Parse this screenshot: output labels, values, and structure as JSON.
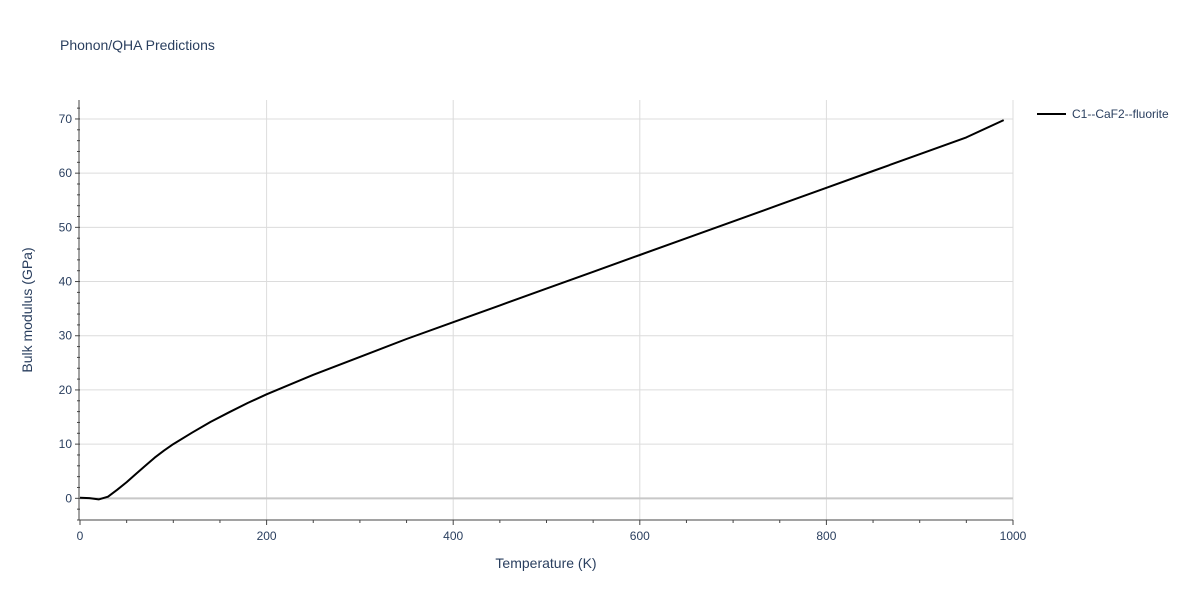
{
  "chart_data": {
    "type": "line",
    "title": "Phonon/QHA Predictions",
    "xlabel": "Temperature (K)",
    "ylabel": "Bulk modulus (GPa)",
    "xlim": [
      0,
      1000
    ],
    "ylim": [
      -4,
      73.5
    ],
    "x_ticks": [
      0,
      200,
      400,
      600,
      800,
      1000
    ],
    "y_ticks": [
      0,
      10,
      20,
      30,
      40,
      50,
      60,
      70
    ],
    "grid": true,
    "legend_position": "top-right",
    "series": [
      {
        "name": "C1--CaF2--fluorite",
        "color": "#000000",
        "x": [
          0,
          10,
          20,
          30,
          40,
          50,
          60,
          70,
          80,
          90,
          100,
          120,
          140,
          160,
          180,
          200,
          250,
          300,
          350,
          400,
          450,
          500,
          550,
          600,
          650,
          700,
          750,
          800,
          850,
          900,
          950,
          990
        ],
        "y": [
          0.1,
          0.05,
          -0.2,
          0.3,
          1.6,
          3.0,
          4.5,
          6.0,
          7.5,
          8.8,
          10.0,
          12.1,
          14.1,
          15.9,
          17.6,
          19.2,
          22.8,
          26.1,
          29.4,
          32.5,
          35.6,
          38.7,
          41.8,
          44.9,
          48.0,
          51.1,
          54.2,
          57.3,
          60.4,
          63.5,
          66.6,
          69.8
        ]
      }
    ]
  }
}
